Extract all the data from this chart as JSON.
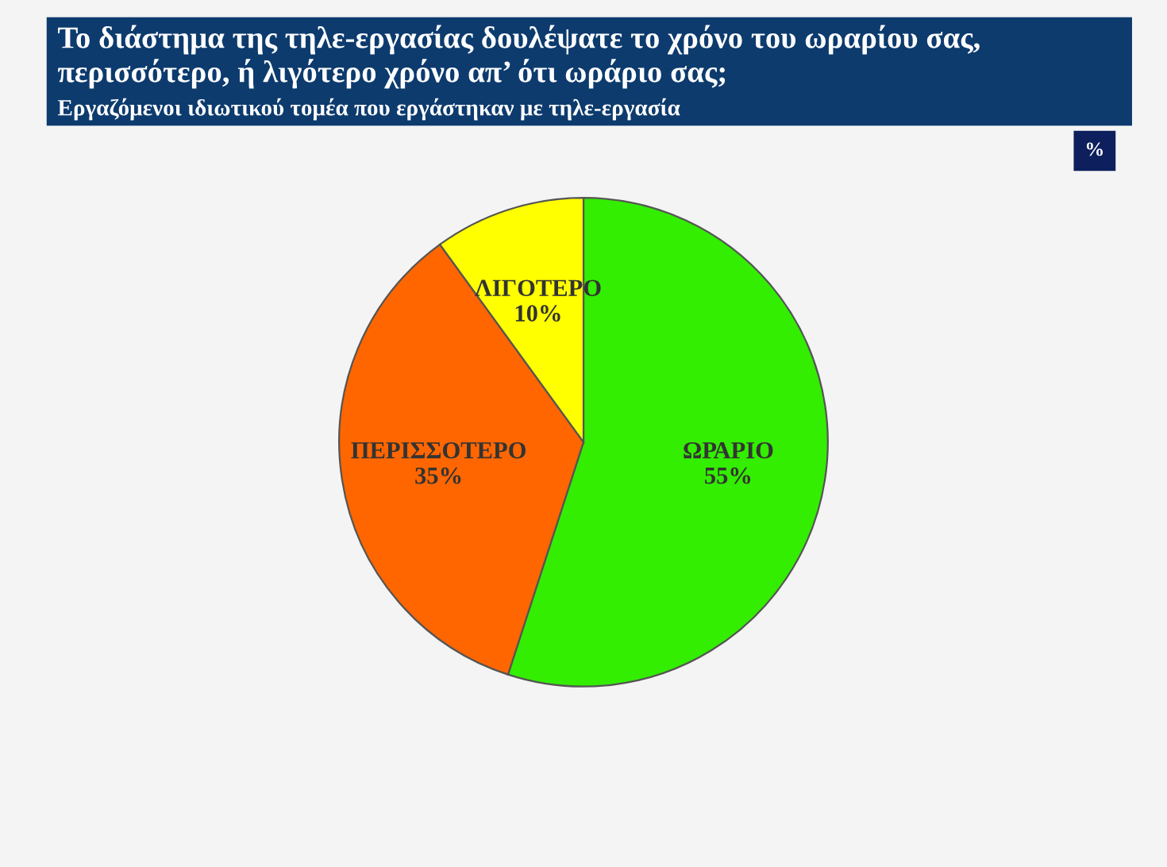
{
  "chart_data": {
    "type": "pie",
    "title": "Το διάστημα της τηλε-εργασίας δουλέψατε το χρόνο του ωραρίου σας, περισσότερο, ή λιγότερο χρόνο απ’ ότι ωράριο σας;",
    "subtitle": "Εργαζόμενοι ιδιωτικού τομέα που εργάστηκαν με τηλε-εργασία",
    "categories": [
      "ΩΡΑΡΙΟ",
      "ΠΕΡΙΣΣΟΤΕΡΟ",
      "ΛΙΓΟΤΕΡΟ"
    ],
    "values": [
      55,
      35,
      10
    ],
    "colors": [
      "#33ee00",
      "#ff6600",
      "#ffff00"
    ],
    "value_labels": [
      "55%",
      "35%",
      "10%"
    ],
    "annotations": [
      "%"
    ]
  }
}
